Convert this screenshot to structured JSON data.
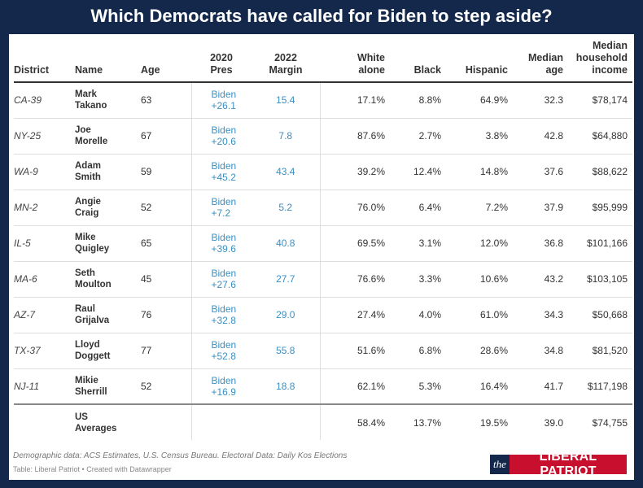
{
  "title": "Which Democrats have called for Biden to step aside?",
  "headers": {
    "district": "District",
    "name": "Name",
    "age": "Age",
    "pres_line1": "2020",
    "pres_line2": "Pres",
    "margin_line1": "2022",
    "margin_line2": "Margin",
    "white_line1": "White",
    "white_line2": "alone",
    "black": "Black",
    "hispanic": "Hispanic",
    "median_age_line1": "Median",
    "median_age_line2": "age",
    "income_line1": "Median",
    "income_line2": "household",
    "income_line3": "income"
  },
  "rows": [
    {
      "district": "CA-39",
      "first": "Mark",
      "last": "Takano",
      "age": "63",
      "pres1": "Biden",
      "pres2": "+26.1",
      "margin": "15.4",
      "white": "17.1%",
      "black": "8.8%",
      "hispanic": "64.9%",
      "median_age": "32.3",
      "income": "$78,174"
    },
    {
      "district": "NY-25",
      "first": "Joe",
      "last": "Morelle",
      "age": "67",
      "pres1": "Biden",
      "pres2": "+20.6",
      "margin": "7.8",
      "white": "87.6%",
      "black": "2.7%",
      "hispanic": "3.8%",
      "median_age": "42.8",
      "income": "$64,880"
    },
    {
      "district": "WA-9",
      "first": "Adam",
      "last": "Smith",
      "age": "59",
      "pres1": "Biden",
      "pres2": "+45.2",
      "margin": "43.4",
      "white": "39.2%",
      "black": "12.4%",
      "hispanic": "14.8%",
      "median_age": "37.6",
      "income": "$88,622"
    },
    {
      "district": "MN-2",
      "first": "Angie",
      "last": "Craig",
      "age": "52",
      "pres1": "Biden",
      "pres2": "+7.2",
      "margin": "5.2",
      "white": "76.0%",
      "black": "6.4%",
      "hispanic": "7.2%",
      "median_age": "37.9",
      "income": "$95,999"
    },
    {
      "district": "IL-5",
      "first": "Mike",
      "last": "Quigley",
      "age": "65",
      "pres1": "Biden",
      "pres2": "+39.6",
      "margin": "40.8",
      "white": "69.5%",
      "black": "3.1%",
      "hispanic": "12.0%",
      "median_age": "36.8",
      "income": "$101,166"
    },
    {
      "district": "MA-6",
      "first": "Seth",
      "last": "Moulton",
      "age": "45",
      "pres1": "Biden",
      "pres2": "+27.6",
      "margin": "27.7",
      "white": "76.6%",
      "black": "3.3%",
      "hispanic": "10.6%",
      "median_age": "43.2",
      "income": "$103,105"
    },
    {
      "district": "AZ-7",
      "first": "Raul",
      "last": "Grijalva",
      "age": "76",
      "pres1": "Biden",
      "pres2": "+32.8",
      "margin": "29.0",
      "white": "27.4%",
      "black": "4.0%",
      "hispanic": "61.0%",
      "median_age": "34.3",
      "income": "$50,668"
    },
    {
      "district": "TX-37",
      "first": "Lloyd",
      "last": "Doggett",
      "age": "77",
      "pres1": "Biden",
      "pres2": "+52.8",
      "margin": "55.8",
      "white": "51.6%",
      "black": "6.8%",
      "hispanic": "28.6%",
      "median_age": "34.8",
      "income": "$81,520"
    },
    {
      "district": "NJ-11",
      "first": "Mikie",
      "last": "Sherrill",
      "age": "52",
      "pres1": "Biden",
      "pres2": "+16.9",
      "margin": "18.8",
      "white": "62.1%",
      "black": "5.3%",
      "hispanic": "16.4%",
      "median_age": "41.7",
      "income": "$117,198"
    }
  ],
  "averages": {
    "line1": "US",
    "line2": "Averages",
    "white": "58.4%",
    "black": "13.7%",
    "hispanic": "19.5%",
    "median_age": "39.0",
    "income": "$74,755"
  },
  "footer": {
    "source": "Demographic data: ACS Estimates, U.S. Census Bureau. Electoral Data: Daily Kos Elections",
    "credit": "Table: Liberal Patriot • Created with Datawrapper"
  },
  "logo": {
    "the": "the",
    "name": "LIBERAL PATRIOT"
  },
  "colors": {
    "background": "#13284b",
    "accent_blue": "#3b8fc1",
    "logo_red": "#c8102e"
  }
}
